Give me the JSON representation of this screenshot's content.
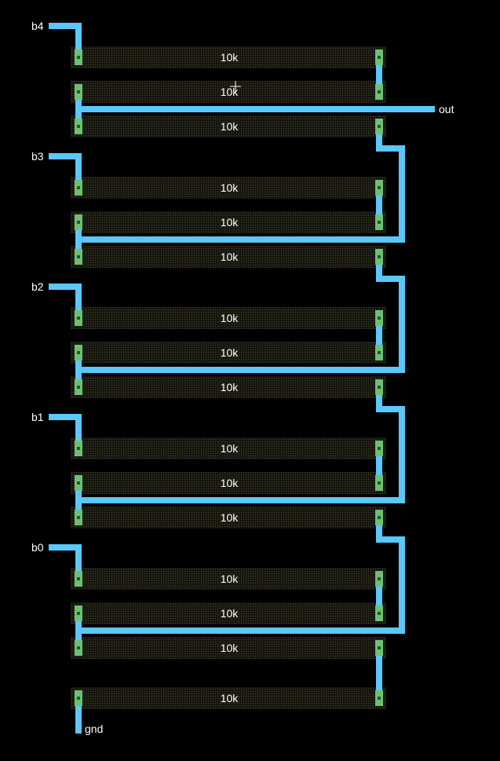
{
  "colors": {
    "background": "#000000",
    "wire": "#5ac8fa",
    "resistor_body": "#23231a",
    "contact": "#6fbf73",
    "contact_core": "#1e5a2a",
    "text": "#ffffff"
  },
  "labels": {
    "b4": "b4",
    "b3": "b3",
    "b2": "b2",
    "b1": "b1",
    "b0": "b0",
    "out": "out",
    "gnd": "gnd"
  },
  "resistors": [
    {
      "value": "10k"
    },
    {
      "value": "10k"
    },
    {
      "value": "10k"
    },
    {
      "value": "10k"
    },
    {
      "value": "10k"
    },
    {
      "value": "10k"
    },
    {
      "value": "10k"
    },
    {
      "value": "10k"
    },
    {
      "value": "10k"
    },
    {
      "value": "10k"
    },
    {
      "value": "10k"
    },
    {
      "value": "10k"
    },
    {
      "value": "10k"
    },
    {
      "value": "10k"
    },
    {
      "value": "10k"
    },
    {
      "value": "10k"
    }
  ],
  "cursor_icon": "crosshair-icon"
}
